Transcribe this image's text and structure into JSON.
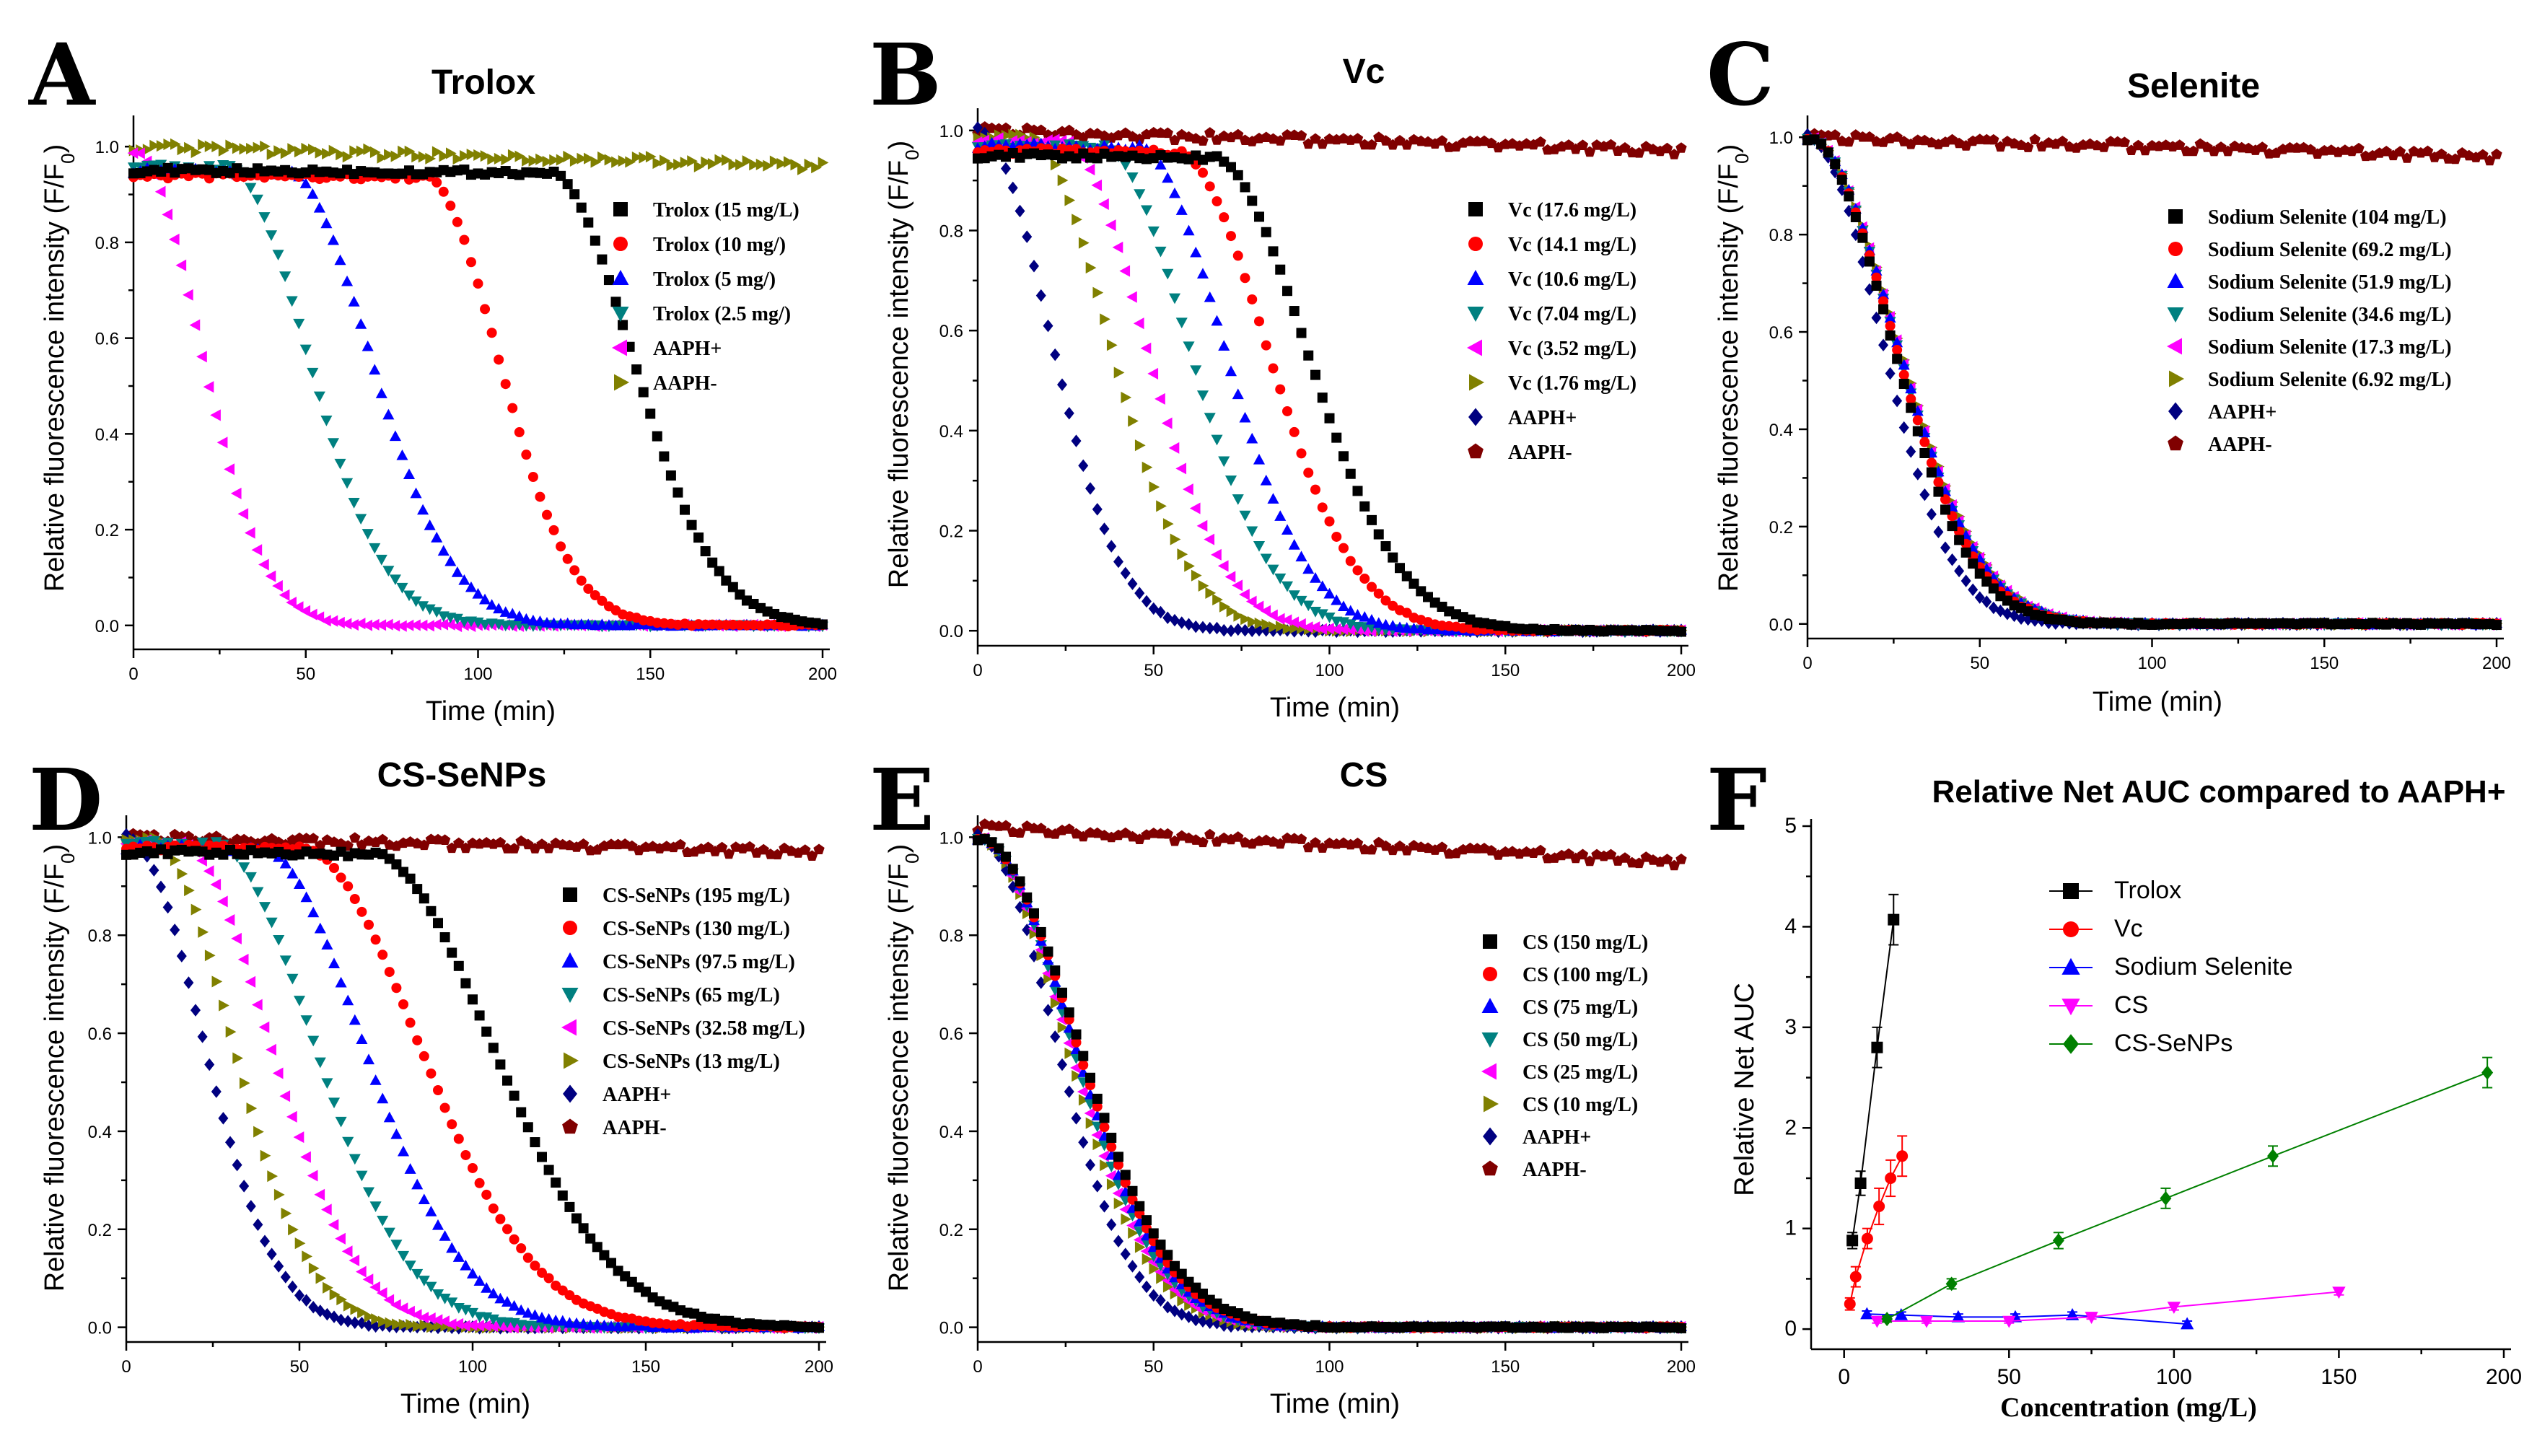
{
  "chart_data": [
    {
      "panel": "A",
      "title": "Trolox",
      "type": "scatter",
      "xlabel": "Time (min)",
      "ylabel_main": "Relative fluorescence intensity (F/F",
      "ylabel_sub": "0",
      "ylabel_end": ")",
      "xlim": [
        0,
        200
      ],
      "ylim": [
        -0.05,
        1.05
      ],
      "xticks": [
        "0",
        "50",
        "100",
        "150",
        "200"
      ],
      "yticks": [
        "0.0",
        "0.2",
        "0.4",
        "0.6",
        "0.8",
        "1.0"
      ],
      "series": [
        {
          "name": "Trolox (15 mg/L)",
          "color": "#000000",
          "marker": "square",
          "lag": 120,
          "half": 18,
          "plateau": 0.95
        },
        {
          "name": "Trolox (10 mg/)",
          "color": "#ff0000",
          "marker": "circle",
          "lag": 84,
          "half": 16,
          "plateau": 0.94
        },
        {
          "name": "Trolox (5 mg/)",
          "color": "#0000ff",
          "marker": "triangle-up",
          "lag": 44,
          "half": 18,
          "plateau": 0.95
        },
        {
          "name": "Trolox (2.5 mg/)",
          "color": "#008080",
          "marker": "triangle-down",
          "lag": 27,
          "half": 17,
          "plateau": 0.96
        },
        {
          "name": "AAPH+",
          "color": "#ff00ff",
          "marker": "triangle-left",
          "lag": 0,
          "half": 14,
          "plateau": 0.99
        },
        {
          "name": "AAPH-",
          "color": "#808000",
          "marker": "triangle-right",
          "flat": true,
          "plateau": 1.0,
          "end": 0.96
        }
      ]
    },
    {
      "panel": "B",
      "title": "Vc",
      "type": "scatter",
      "xlabel": "Time (min)",
      "ylabel_main": "Relative fluorescence intensity (F/F",
      "ylabel_sub": "0",
      "ylabel_end": ")",
      "xlim": [
        0,
        200
      ],
      "ylim": [
        -0.03,
        1.03
      ],
      "xticks": [
        "0",
        "50",
        "100",
        "150",
        "200"
      ],
      "yticks": [
        "0.0",
        "0.2",
        "0.4",
        "0.6",
        "0.8",
        "1.0"
      ],
      "series": [
        {
          "name": "Vc (17.6 mg/L)",
          "color": "#000000",
          "marker": "square",
          "lag": 66,
          "half": 20,
          "plateau": 0.95
        },
        {
          "name": "Vc (14.1 mg/L)",
          "color": "#ff0000",
          "marker": "circle",
          "lag": 56,
          "half": 19,
          "plateau": 0.96
        },
        {
          "name": "Vc (10.6 mg/L)",
          "color": "#0000ff",
          "marker": "triangle-up",
          "lag": 45,
          "half": 18,
          "plateau": 0.97
        },
        {
          "name": "Vc (7.04 mg/L)",
          "color": "#008080",
          "marker": "triangle-down",
          "lag": 35,
          "half": 18,
          "plateau": 0.97
        },
        {
          "name": "Vc (3.52 mg/L)",
          "color": "#ff00ff",
          "marker": "triangle-left",
          "lag": 24,
          "half": 17,
          "plateau": 0.98
        },
        {
          "name": "Vc (1.76 mg/L)",
          "color": "#808000",
          "marker": "triangle-right",
          "lag": 14,
          "half": 17,
          "plateau": 0.99
        },
        {
          "name": "AAPH+",
          "color": "#000080",
          "marker": "diamond",
          "lag": 0,
          "half": 15,
          "plateau": 1.0
        },
        {
          "name": "AAPH-",
          "color": "#800000",
          "marker": "pentagon",
          "flat": true,
          "plateau": 1.0,
          "end": 0.96
        }
      ]
    },
    {
      "panel": "C",
      "title": "Selenite",
      "type": "scatter",
      "xlabel": "Time (min)",
      "ylabel_main": "Relative fluorescence intensity (F/F",
      "ylabel_sub": "0",
      "ylabel_end": ")",
      "xlim": [
        0,
        200
      ],
      "ylim": [
        -0.03,
        1.03
      ],
      "xticks": [
        "0",
        "50",
        "100",
        "150",
        "200"
      ],
      "yticks": [
        "0.0",
        "0.2",
        "0.4",
        "0.6",
        "0.8",
        "1.0"
      ],
      "series": [
        {
          "name": "Sodium Selenite (104 mg/L)",
          "color": "#000000",
          "marker": "square",
          "lag": 0,
          "half": 17.5,
          "plateau": 1.0
        },
        {
          "name": "Sodium Selenite (69.2 mg/L)",
          "color": "#ff0000",
          "marker": "circle",
          "lag": 0,
          "half": 18,
          "plateau": 1.0
        },
        {
          "name": "Sodium Selenite (51.9 mg/L)",
          "color": "#0000ff",
          "marker": "triangle-up",
          "lag": 0,
          "half": 18.5,
          "plateau": 1.0
        },
        {
          "name": "Sodium Selenite (34.6 mg/L)",
          "color": "#008080",
          "marker": "triangle-down",
          "lag": 0,
          "half": 18.3,
          "plateau": 1.0
        },
        {
          "name": "Sodium Selenite (17.3 mg/L)",
          "color": "#ff00ff",
          "marker": "triangle-left",
          "lag": 0,
          "half": 18.6,
          "plateau": 1.0
        },
        {
          "name": "Sodium Selenite (6.92 mg/L)",
          "color": "#808000",
          "marker": "triangle-right",
          "lag": 0,
          "half": 18.8,
          "plateau": 1.0
        },
        {
          "name": "AAPH+",
          "color": "#000080",
          "marker": "diamond",
          "lag": 0,
          "half": 15.5,
          "plateau": 1.0
        },
        {
          "name": "AAPH-",
          "color": "#800000",
          "marker": "pentagon",
          "flat": true,
          "plateau": 1.0,
          "end": 0.96
        }
      ]
    },
    {
      "panel": "D",
      "title": "CS-SeNPs",
      "type": "scatter",
      "xlabel": "Time (min)",
      "ylabel_main": "Relative fluorescence intensity (F/F",
      "ylabel_sub": "0",
      "ylabel_end": ")",
      "xlim": [
        0,
        200
      ],
      "ylim": [
        -0.03,
        1.03
      ],
      "xticks": [
        "0",
        "50",
        "100",
        "150",
        "200"
      ],
      "yticks": [
        "0.0",
        "0.2",
        "0.4",
        "0.6",
        "0.8",
        "1.0"
      ],
      "series": [
        {
          "name": "CS-SeNPs (195 mg/L)",
          "color": "#000000",
          "marker": "square",
          "lag": 70,
          "half": 26,
          "plateau": 0.97
        },
        {
          "name": "CS-SeNPs (130 mg/L)",
          "color": "#ff0000",
          "marker": "circle",
          "lag": 50,
          "half": 25,
          "plateau": 0.98
        },
        {
          "name": "CS-SeNPs (97.5 mg/L)",
          "color": "#0000ff",
          "marker": "triangle-up",
          "lag": 38,
          "half": 22,
          "plateau": 0.98
        },
        {
          "name": "CS-SeNPs (65 mg/L)",
          "color": "#008080",
          "marker": "triangle-down",
          "lag": 25,
          "half": 21,
          "plateau": 0.99
        },
        {
          "name": "CS-SeNPs (32.58 mg/L)",
          "color": "#ff00ff",
          "marker": "triangle-left",
          "lag": 15,
          "half": 19,
          "plateau": 0.99
        },
        {
          "name": "CS-SeNPs (13 mg/L)",
          "color": "#808000",
          "marker": "triangle-right",
          "lag": 7,
          "half": 17,
          "plateau": 1.0
        },
        {
          "name": "AAPH+",
          "color": "#000080",
          "marker": "diamond",
          "lag": 0,
          "half": 16,
          "plateau": 1.0
        },
        {
          "name": "AAPH-",
          "color": "#800000",
          "marker": "pentagon",
          "flat": true,
          "plateau": 1.0,
          "end": 0.97
        }
      ]
    },
    {
      "panel": "E",
      "title": "CS",
      "type": "scatter",
      "xlabel": "Time (min)",
      "ylabel_main": "Relative fluorescence intensity (F/F",
      "ylabel_sub": "0",
      "ylabel_end": ")",
      "xlim": [
        0,
        200
      ],
      "ylim": [
        -0.03,
        1.03
      ],
      "xticks": [
        "0",
        "50",
        "100",
        "150",
        "200"
      ],
      "yticks": [
        "0.0",
        "0.2",
        "0.4",
        "0.6",
        "0.8",
        "1.0"
      ],
      "series": [
        {
          "name": "CS (150 mg/L)",
          "color": "#000000",
          "marker": "square",
          "lag": 0,
          "half": 20.5,
          "plateau": 1.0
        },
        {
          "name": "CS (100 mg/L)",
          "color": "#ff0000",
          "marker": "circle",
          "lag": 0,
          "half": 20,
          "plateau": 1.0
        },
        {
          "name": "CS (75 mg/L)",
          "color": "#0000ff",
          "marker": "triangle-up",
          "lag": 0,
          "half": 19.5,
          "plateau": 1.0
        },
        {
          "name": "CS (50 mg/L)",
          "color": "#008080",
          "marker": "triangle-down",
          "lag": 0,
          "half": 19,
          "plateau": 1.0
        },
        {
          "name": "CS (25 mg/L)",
          "color": "#ff00ff",
          "marker": "triangle-left",
          "lag": 0,
          "half": 18.5,
          "plateau": 1.0
        },
        {
          "name": "CS (10 mg/L)",
          "color": "#808000",
          "marker": "triangle-right",
          "lag": 0,
          "half": 18,
          "plateau": 1.0
        },
        {
          "name": "AAPH+",
          "color": "#000080",
          "marker": "diamond",
          "lag": 0,
          "half": 16,
          "plateau": 1.0
        },
        {
          "name": "AAPH-",
          "color": "#800000",
          "marker": "pentagon",
          "flat": true,
          "plateau": 1.02,
          "end": 0.95
        }
      ]
    },
    {
      "panel": "F",
      "title": "Relative Net AUC compared to AAPH+",
      "type": "line",
      "xlabel": "Concentration (mg/L)",
      "ylabel": "Relative Net AUC",
      "xlim": [
        -10,
        200
      ],
      "ylim": [
        -0.2,
        5
      ],
      "xticks": [
        "0",
        "50",
        "100",
        "150",
        "200"
      ],
      "yticks": [
        "0",
        "1",
        "2",
        "3",
        "4",
        "5"
      ],
      "series": [
        {
          "name": "Trolox",
          "color": "#000000",
          "marker": "square",
          "x": [
            2.5,
            5,
            10,
            15
          ],
          "y": [
            0.88,
            1.45,
            2.8,
            4.07
          ],
          "err": [
            0.08,
            0.12,
            0.2,
            0.25
          ]
        },
        {
          "name": "Vc",
          "color": "#ff0000",
          "marker": "circle",
          "x": [
            1.76,
            3.52,
            7.04,
            10.6,
            14.1,
            17.6
          ],
          "y": [
            0.25,
            0.52,
            0.9,
            1.22,
            1.5,
            1.72
          ],
          "err": [
            0.06,
            0.1,
            0.1,
            0.18,
            0.18,
            0.2
          ]
        },
        {
          "name": "Sodium Selenite",
          "color": "#0000ff",
          "marker": "triangle-up",
          "x": [
            6.92,
            17.3,
            34.6,
            51.9,
            69.2,
            104
          ],
          "y": [
            0.15,
            0.14,
            0.12,
            0.12,
            0.14,
            0.05
          ],
          "err": [
            0.03,
            0.03,
            0.03,
            0.03,
            0.03,
            0.03
          ]
        },
        {
          "name": "CS",
          "color": "#ff00ff",
          "marker": "triangle-down",
          "x": [
            10,
            25,
            50,
            75,
            100,
            150
          ],
          "y": [
            0.08,
            0.08,
            0.08,
            0.12,
            0.22,
            0.37
          ],
          "err": [
            0.02,
            0.02,
            0.02,
            0.02,
            0.03,
            0.03
          ]
        },
        {
          "name": "CS-SeNPs",
          "color": "#008000",
          "marker": "diamond",
          "x": [
            13,
            32.58,
            65,
            97.5,
            130,
            195
          ],
          "y": [
            0.1,
            0.45,
            0.88,
            1.3,
            1.72,
            2.55
          ],
          "err": [
            0.03,
            0.05,
            0.08,
            0.1,
            0.1,
            0.15
          ]
        }
      ]
    }
  ]
}
